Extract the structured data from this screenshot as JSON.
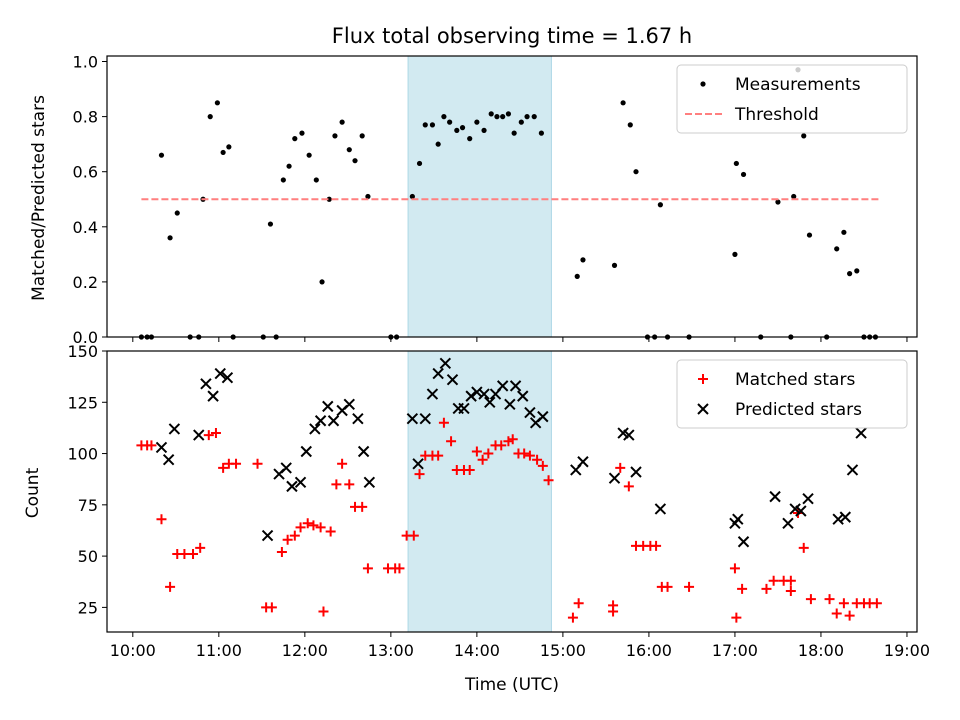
{
  "chart_data": [
    {
      "type": "scatter",
      "title": "Flux total observing time = 1.67 h",
      "xlabel": "",
      "ylabel": "Matched/Predicted stars",
      "x_unit": "time of day (UTC)",
      "xlim": [
        "09:42",
        "19:07"
      ],
      "ylim": [
        0,
        1.02
      ],
      "yticks": [
        0.0,
        0.2,
        0.4,
        0.6,
        0.8,
        1.0
      ],
      "ytick_labels": [
        "0.0",
        "0.2",
        "0.4",
        "0.6",
        "0.8",
        "1.0"
      ],
      "highlight_span": [
        "13:12",
        "14:52"
      ],
      "highlight_color": "#add8e6",
      "legend": {
        "placement": "top-right",
        "entries": [
          "Measurements",
          "Threshold"
        ]
      },
      "series": [
        {
          "name": "Measurements",
          "marker": "dot",
          "color": "#000000",
          "points": [
            [
              "10:06",
              0.0
            ],
            [
              "10:10",
              0.0
            ],
            [
              "10:13",
              0.0
            ],
            [
              "10:20",
              0.66
            ],
            [
              "10:26",
              0.36
            ],
            [
              "10:31",
              0.45
            ],
            [
              "10:40",
              0.0
            ],
            [
              "10:46",
              0.0
            ],
            [
              "10:49",
              0.5
            ],
            [
              "10:54",
              0.8
            ],
            [
              "10:59",
              0.85
            ],
            [
              "11:03",
              0.67
            ],
            [
              "11:07",
              0.69
            ],
            [
              "11:10",
              0.0
            ],
            [
              "11:31",
              0.0
            ],
            [
              "11:36",
              0.41
            ],
            [
              "11:40",
              0.0
            ],
            [
              "11:45",
              0.57
            ],
            [
              "11:49",
              0.62
            ],
            [
              "11:53",
              0.72
            ],
            [
              "11:58",
              0.74
            ],
            [
              "12:03",
              0.66
            ],
            [
              "12:08",
              0.57
            ],
            [
              "12:12",
              0.2
            ],
            [
              "12:17",
              0.5
            ],
            [
              "12:21",
              0.73
            ],
            [
              "12:26",
              0.78
            ],
            [
              "12:31",
              0.68
            ],
            [
              "12:35",
              0.64
            ],
            [
              "12:40",
              0.73
            ],
            [
              "12:44",
              0.51
            ],
            [
              "13:00",
              0.0
            ],
            [
              "13:04",
              0.0
            ],
            [
              "13:15",
              0.51
            ],
            [
              "13:20",
              0.63
            ],
            [
              "13:24",
              0.77
            ],
            [
              "13:29",
              0.77
            ],
            [
              "13:33",
              0.7
            ],
            [
              "13:37",
              0.8
            ],
            [
              "13:41",
              0.78
            ],
            [
              "13:46",
              0.75
            ],
            [
              "13:50",
              0.76
            ],
            [
              "13:55",
              0.72
            ],
            [
              "14:00",
              0.78
            ],
            [
              "14:05",
              0.75
            ],
            [
              "14:10",
              0.81
            ],
            [
              "14:14",
              0.8
            ],
            [
              "14:18",
              0.8
            ],
            [
              "14:22",
              0.81
            ],
            [
              "14:26",
              0.74
            ],
            [
              "14:31",
              0.78
            ],
            [
              "14:35",
              0.8
            ],
            [
              "14:40",
              0.8
            ],
            [
              "14:45",
              0.74
            ],
            [
              "15:10",
              0.22
            ],
            [
              "15:14",
              0.28
            ],
            [
              "15:36",
              0.26
            ],
            [
              "15:42",
              0.85
            ],
            [
              "15:47",
              0.77
            ],
            [
              "15:51",
              0.6
            ],
            [
              "15:59",
              0.0
            ],
            [
              "16:04",
              0.0
            ],
            [
              "16:08",
              0.48
            ],
            [
              "16:13",
              0.0
            ],
            [
              "16:28",
              0.0
            ],
            [
              "17:00",
              0.3
            ],
            [
              "17:01",
              0.63
            ],
            [
              "17:06",
              0.59
            ],
            [
              "17:18",
              0.0
            ],
            [
              "17:30",
              0.49
            ],
            [
              "17:39",
              0.0
            ],
            [
              "17:41",
              0.51
            ],
            [
              "17:44",
              0.97
            ],
            [
              "17:48",
              0.73
            ],
            [
              "17:52",
              0.37
            ],
            [
              "18:04",
              0.0
            ],
            [
              "18:11",
              0.32
            ],
            [
              "18:16",
              0.38
            ],
            [
              "18:20",
              0.23
            ],
            [
              "18:25",
              0.24
            ],
            [
              "18:30",
              0.0
            ],
            [
              "18:34",
              0.0
            ],
            [
              "18:38",
              0.0
            ]
          ]
        },
        {
          "name": "Threshold",
          "line_style": "dashed",
          "color": "#ff7f7f",
          "points": [
            [
              "10:06",
              0.5
            ],
            [
              "18:42",
              0.5
            ]
          ]
        }
      ]
    },
    {
      "type": "scatter",
      "title": "",
      "xlabel": "Time (UTC)",
      "ylabel": "Count",
      "x_unit": "time of day (UTC)",
      "xlim": [
        "09:42",
        "19:07"
      ],
      "ylim": [
        13,
        150
      ],
      "xtick_labels": [
        "10:00",
        "11:00",
        "12:00",
        "13:00",
        "14:00",
        "15:00",
        "16:00",
        "17:00",
        "18:00",
        "19:00"
      ],
      "yticks": [
        25,
        50,
        75,
        100,
        125,
        150
      ],
      "ytick_labels": [
        "25",
        "50",
        "75",
        "100",
        "125",
        "150"
      ],
      "highlight_span": [
        "13:12",
        "14:52"
      ],
      "highlight_color": "#add8e6",
      "legend": {
        "placement": "top-right",
        "entries": [
          "Matched stars",
          "Predicted stars"
        ]
      },
      "series": [
        {
          "name": "Matched stars",
          "marker": "plus",
          "color": "#ff0000",
          "points": [
            [
              "10:06",
              104
            ],
            [
              "10:10",
              104
            ],
            [
              "10:13",
              104
            ],
            [
              "10:20",
              68
            ],
            [
              "10:26",
              35
            ],
            [
              "10:31",
              51
            ],
            [
              "10:36",
              51
            ],
            [
              "10:42",
              51
            ],
            [
              "10:47",
              54
            ],
            [
              "10:53",
              109
            ],
            [
              "10:58",
              110
            ],
            [
              "11:03",
              93
            ],
            [
              "11:07",
              95
            ],
            [
              "11:12",
              95
            ],
            [
              "11:27",
              95
            ],
            [
              "11:33",
              25
            ],
            [
              "11:37",
              25
            ],
            [
              "11:44",
              52
            ],
            [
              "11:48",
              58
            ],
            [
              "11:53",
              60
            ],
            [
              "11:57",
              64
            ],
            [
              "12:02",
              66
            ],
            [
              "12:06",
              65
            ],
            [
              "12:11",
              64
            ],
            [
              "12:13",
              23
            ],
            [
              "12:18",
              62
            ],
            [
              "12:22",
              85
            ],
            [
              "12:26",
              95
            ],
            [
              "12:31",
              85
            ],
            [
              "12:35",
              74
            ],
            [
              "12:40",
              74
            ],
            [
              "12:44",
              44
            ],
            [
              "12:58",
              44
            ],
            [
              "13:03",
              44
            ],
            [
              "13:06",
              44
            ],
            [
              "13:11",
              60
            ],
            [
              "13:16",
              60
            ],
            [
              "13:20",
              90
            ],
            [
              "13:24",
              99
            ],
            [
              "13:29",
              99
            ],
            [
              "13:33",
              99
            ],
            [
              "13:37",
              115
            ],
            [
              "13:42",
              106
            ],
            [
              "13:46",
              92
            ],
            [
              "13:51",
              92
            ],
            [
              "13:55",
              92
            ],
            [
              "14:00",
              101
            ],
            [
              "14:04",
              97
            ],
            [
              "14:08",
              100
            ],
            [
              "14:13",
              104
            ],
            [
              "14:17",
              104
            ],
            [
              "14:22",
              106
            ],
            [
              "14:25",
              107
            ],
            [
              "14:29",
              100
            ],
            [
              "14:33",
              100
            ],
            [
              "14:37",
              99
            ],
            [
              "14:42",
              97
            ],
            [
              "14:46",
              94
            ],
            [
              "14:50",
              87
            ],
            [
              "15:07",
              20
            ],
            [
              "15:11",
              27
            ],
            [
              "15:35",
              26
            ],
            [
              "15:35",
              23
            ],
            [
              "15:40",
              93
            ],
            [
              "15:46",
              84
            ],
            [
              "15:51",
              55
            ],
            [
              "15:56",
              55
            ],
            [
              "16:01",
              55
            ],
            [
              "16:05",
              55
            ],
            [
              "16:09",
              35
            ],
            [
              "16:13",
              35
            ],
            [
              "16:28",
              35
            ],
            [
              "17:00",
              44
            ],
            [
              "17:01",
              20
            ],
            [
              "17:05",
              34
            ],
            [
              "17:22",
              34
            ],
            [
              "17:27",
              38
            ],
            [
              "17:34",
              38
            ],
            [
              "17:39",
              38
            ],
            [
              "17:39",
              33
            ],
            [
              "17:44",
              71
            ],
            [
              "17:48",
              54
            ],
            [
              "17:53",
              29
            ],
            [
              "18:06",
              29
            ],
            [
              "18:11",
              22
            ],
            [
              "18:16",
              27
            ],
            [
              "18:20",
              21
            ],
            [
              "18:25",
              27
            ],
            [
              "18:30",
              27
            ],
            [
              "18:34",
              27
            ],
            [
              "18:39",
              27
            ]
          ]
        },
        {
          "name": "Predicted stars",
          "marker": "x",
          "color": "#000000",
          "points": [
            [
              "10:20",
              103
            ],
            [
              "10:25",
              97
            ],
            [
              "10:29",
              112
            ],
            [
              "10:46",
              109
            ],
            [
              "10:51",
              134
            ],
            [
              "10:56",
              128
            ],
            [
              "11:01",
              139
            ],
            [
              "11:06",
              137
            ],
            [
              "11:34",
              60
            ],
            [
              "11:42",
              90
            ],
            [
              "11:47",
              93
            ],
            [
              "11:51",
              84
            ],
            [
              "11:57",
              86
            ],
            [
              "12:01",
              101
            ],
            [
              "12:07",
              112
            ],
            [
              "12:11",
              116
            ],
            [
              "12:16",
              123
            ],
            [
              "12:20",
              116
            ],
            [
              "12:26",
              121
            ],
            [
              "12:31",
              124
            ],
            [
              "12:37",
              117
            ],
            [
              "12:41",
              101
            ],
            [
              "12:45",
              86
            ],
            [
              "13:15",
              117
            ],
            [
              "13:19",
              95
            ],
            [
              "13:24",
              117
            ],
            [
              "13:29",
              129
            ],
            [
              "13:33",
              139
            ],
            [
              "13:38",
              144
            ],
            [
              "13:43",
              136
            ],
            [
              "13:47",
              122
            ],
            [
              "13:51",
              122
            ],
            [
              "13:56",
              128
            ],
            [
              "14:00",
              130
            ],
            [
              "14:05",
              129
            ],
            [
              "14:09",
              125
            ],
            [
              "14:13",
              129
            ],
            [
              "14:18",
              133
            ],
            [
              "14:23",
              124
            ],
            [
              "14:27",
              133
            ],
            [
              "14:32",
              128
            ],
            [
              "14:37",
              120
            ],
            [
              "14:41",
              115
            ],
            [
              "14:46",
              118
            ],
            [
              "15:09",
              92
            ],
            [
              "15:14",
              96
            ],
            [
              "15:36",
              88
            ],
            [
              "15:42",
              110
            ],
            [
              "15:46",
              109
            ],
            [
              "15:51",
              91
            ],
            [
              "16:08",
              73
            ],
            [
              "17:00",
              66
            ],
            [
              "17:02",
              68
            ],
            [
              "17:06",
              57
            ],
            [
              "17:28",
              79
            ],
            [
              "17:37",
              66
            ],
            [
              "17:42",
              73
            ],
            [
              "17:46",
              72
            ],
            [
              "17:51",
              78
            ],
            [
              "18:12",
              68
            ],
            [
              "18:17",
              69
            ],
            [
              "18:22",
              92
            ],
            [
              "18:28",
              110
            ]
          ]
        }
      ]
    }
  ]
}
